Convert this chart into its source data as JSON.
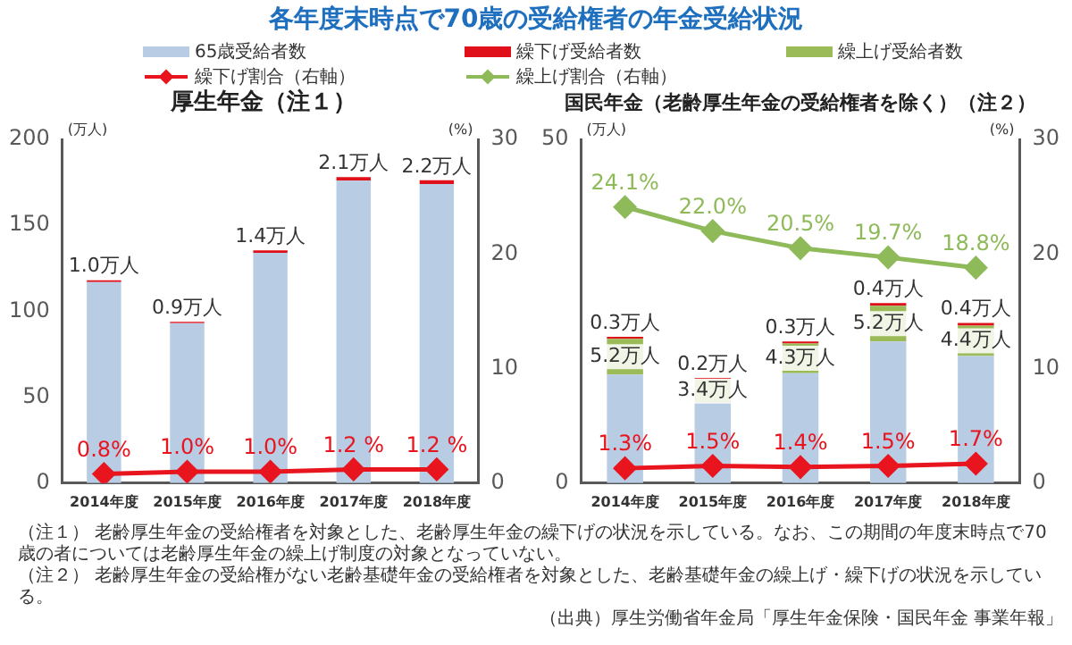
{
  "chart_data": [
    {
      "type": "bar",
      "title": "各年度末時点で70歳の受給権者の年金受給状況",
      "subtitle": "厚生年金（注１）",
      "ylabel": "(万人)",
      "y2label": "(%)",
      "categories": [
        "2014年度",
        "2015年度",
        "2016年度",
        "2017年度",
        "2018年度"
      ],
      "stacked": true,
      "ylim": [
        0,
        200
      ],
      "yticks": [
        0,
        50,
        100,
        150,
        200
      ],
      "y2lim": [
        0,
        30
      ],
      "y2ticks": [
        0,
        10,
        20,
        30
      ],
      "legend": "top",
      "marker": "diamond",
      "series": [
        {
          "name": "65歳受給者数",
          "color": "#b8cce4",
          "values": [
            117,
            93,
            134,
            176,
            174
          ]
        },
        {
          "name": "繰下げ受給者数",
          "color": "#e0101a",
          "values": [
            1.0,
            0.9,
            1.4,
            2.1,
            2.2
          ],
          "value_labels": [
            "1.0万人",
            "0.9万人",
            "1.4万人",
            "2.1万人",
            "2.2万人"
          ]
        },
        {
          "name": "繰下げ割合（右軸）",
          "type": "line",
          "axis": "y2",
          "color": "#e8141e",
          "values": [
            0.8,
            1.0,
            1.0,
            1.2,
            1.2
          ],
          "value_labels": [
            "0.8%",
            "1.0%",
            "1.0%",
            "1.2 %",
            "1.2 %"
          ]
        }
      ]
    },
    {
      "type": "bar",
      "title": "国民年金（老齢厚生年金の受給権者を除く）（注２）",
      "ylabel": "(万人)",
      "y2label": "(%)",
      "categories": [
        "2014年度",
        "2015年度",
        "2016年度",
        "2017年度",
        "2018年度"
      ],
      "stacked": true,
      "ylim": [
        0,
        50
      ],
      "yticks": [
        0,
        50
      ],
      "y2lim": [
        0,
        30
      ],
      "y2ticks": [
        0,
        10,
        20,
        30
      ],
      "legend": "top",
      "marker": "diamond",
      "series": [
        {
          "name": "65歳受給者数",
          "color": "#b8cce4",
          "values": [
            15.8,
            11.7,
            16.0,
            20.6,
            18.5
          ]
        },
        {
          "name": "繰上げ受給者数",
          "color": "#9bbb59",
          "values": [
            5.2,
            3.4,
            4.3,
            5.2,
            4.4
          ],
          "value_labels": [
            "5.2万人",
            "3.4万人",
            "4.3万人",
            "5.2万人",
            "4.4万人"
          ]
        },
        {
          "name": "繰下げ受給者数",
          "color": "#e0101a",
          "values": [
            0.3,
            0.2,
            0.3,
            0.4,
            0.4
          ],
          "value_labels": [
            "0.3万人",
            "0.2万人",
            "0.3万人",
            "0.4万人",
            "0.4万人"
          ]
        },
        {
          "name": "繰上げ割合（右軸）",
          "type": "line",
          "axis": "y2",
          "color": "#8fba5a",
          "values": [
            24.1,
            22.0,
            20.5,
            19.7,
            18.8
          ],
          "value_labels": [
            "24.1%",
            "22.0%",
            "20.5%",
            "19.7%",
            "18.8%"
          ]
        },
        {
          "name": "繰下げ割合（右軸）",
          "type": "line",
          "axis": "y2",
          "color": "#e8141e",
          "values": [
            1.3,
            1.5,
            1.4,
            1.5,
            1.7
          ],
          "value_labels": [
            "1.3%",
            "1.5%",
            "1.4%",
            "1.5%",
            "1.7%"
          ]
        }
      ],
      "annotations": [
        "（注１） 老齢厚生年金の受給権者を対象とした、老齢厚生年金の繰下げの状況を示している。なお、この期間の年度末時点で70歳の者については老齢厚生年金の繰上げ制度の対象となっていない。",
        "（注２） 老齢厚生年金の受給権がない老齢基礎年金の受給権者を対象とした、老齢基礎年金の繰上げ・繰下げの状況を示している。",
        "（出典）厚生労働省年金局「厚生年金保険・国民年金 事業年報」"
      ]
    }
  ]
}
